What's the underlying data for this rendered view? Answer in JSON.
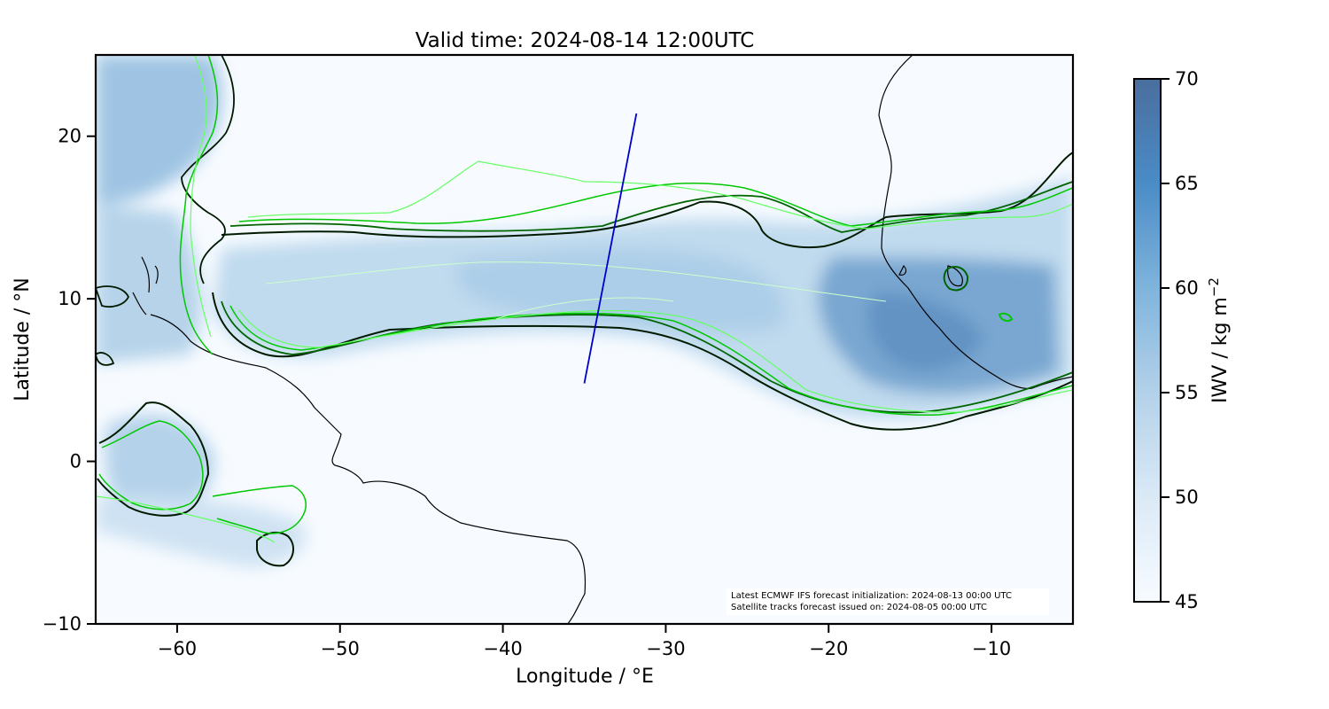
{
  "title": "Valid time: 2024-08-14 12:00UTC",
  "map": {
    "xlabel": "Longitude / °E",
    "ylabel": "Latitude / °N",
    "xlim": [
      -65,
      -5
    ],
    "ylim": [
      -10,
      25
    ],
    "xticks": [
      -60,
      -50,
      -40,
      -30,
      -20,
      -10
    ],
    "xtick_labels": [
      "−60",
      "−50",
      "−40",
      "−30",
      "−20",
      "−10"
    ],
    "yticks": [
      -10,
      0,
      10,
      20
    ],
    "ytick_labels": [
      "−10",
      "0",
      "10",
      "20"
    ]
  },
  "colorbar": {
    "label": "IWV / kg m",
    "label_superscript": "−2",
    "range": [
      45,
      70
    ],
    "ticks": [
      45,
      50,
      55,
      60,
      65,
      70
    ],
    "tick_labels": [
      "45",
      "50",
      "55",
      "60",
      "65",
      "70"
    ],
    "color_low": "#f7fbff",
    "color_high": "#4a6e9e"
  },
  "satellite_track": {
    "color": "#0000cc",
    "start": [
      -35.0,
      4.8
    ],
    "end": [
      -31.8,
      21.4
    ]
  },
  "contour_colors": [
    "#001a00",
    "#006400",
    "#00c800",
    "#66ff66",
    "#ccffcc"
  ],
  "annotation": {
    "line1": "Latest ECMWF IFS forecast initialization: 2024-08-13 00:00 UTC",
    "line2": "Satellite tracks forecast issued on: 2024-08-05 00:00 UTC"
  }
}
